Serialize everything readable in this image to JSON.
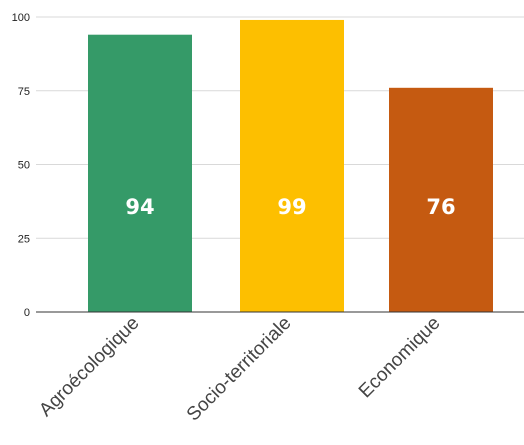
{
  "chart_data": {
    "type": "bar",
    "categories": [
      "Agroécologique",
      "Socio-territoriale",
      "Economique"
    ],
    "values": [
      94,
      99,
      76
    ],
    "data_labels": [
      "94",
      "99",
      "76"
    ],
    "bar_colors": [
      "#359a68",
      "#fdbf00",
      "#c55a11"
    ],
    "ylim": [
      0,
      100
    ],
    "yticks": [
      0,
      25,
      50,
      75,
      100
    ],
    "ytick_labels": [
      "0",
      "25",
      "50",
      "75",
      "100"
    ],
    "grid": true,
    "title": "",
    "xlabel": "",
    "ylabel": ""
  }
}
